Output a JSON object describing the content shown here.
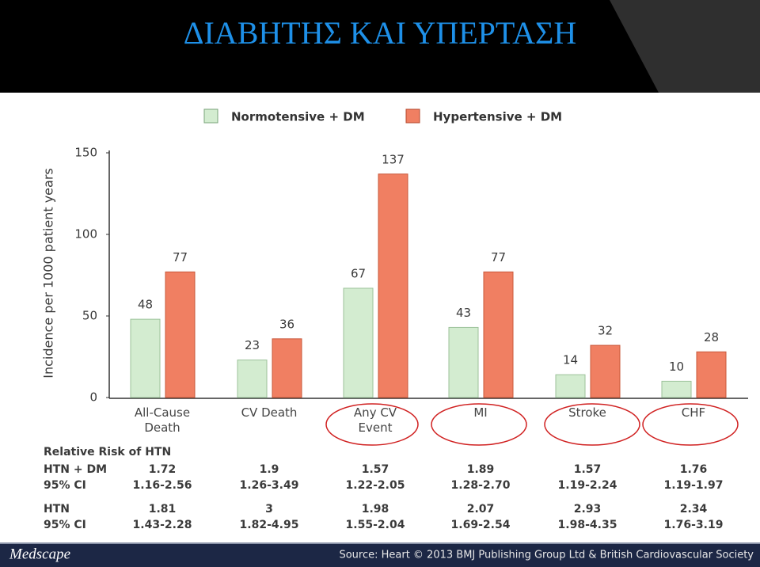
{
  "header": {
    "title": "ΔΙΑΒΗΤΗΣ ΚΑΙ ΥΠΕΡΤΑΣΗ"
  },
  "chart_data": {
    "type": "bar",
    "y_label": "Incidence per 1000 patient years",
    "categories": [
      "All-Cause\nDeath",
      "CV Death",
      "Any CV\nEvent",
      "MI",
      "Stroke",
      "CHF"
    ],
    "series": [
      {
        "name": "Normotensive + DM",
        "color": "#d3ecd0",
        "values": [
          48,
          23,
          67,
          43,
          14,
          10
        ]
      },
      {
        "name": "Hypertensive + DM",
        "color": "#f07f62",
        "values": [
          77,
          36,
          137,
          77,
          32,
          28
        ]
      }
    ],
    "ylim": [
      0,
      150
    ],
    "yticks": [
      0,
      50,
      100,
      150
    ],
    "grid": false
  },
  "table": {
    "title": "Relative Risk of HTN",
    "rows": [
      [
        "HTN + DM",
        "1.72",
        "1.9",
        "1.57",
        "1.89",
        "1.57",
        "1.76"
      ],
      [
        "95% CI",
        "1.16-2.56",
        "1.26-3.49",
        "1.22-2.05",
        "1.28-2.70",
        "1.19-2.24",
        "1.19-1.97"
      ],
      [
        "HTN",
        "1.81",
        "3",
        "1.98",
        "2.07",
        "2.93",
        "2.34"
      ],
      [
        "95% CI",
        "1.43-2.28",
        "1.82-4.95",
        "1.55-2.04",
        "1.69-2.54",
        "1.98-4.35",
        "1.76-3.19"
      ]
    ]
  },
  "footer": {
    "brand": "Medscape",
    "source": "Source: Heart © 2013 BMJ Publishing Group Ltd & British Cardiovascular Society"
  }
}
